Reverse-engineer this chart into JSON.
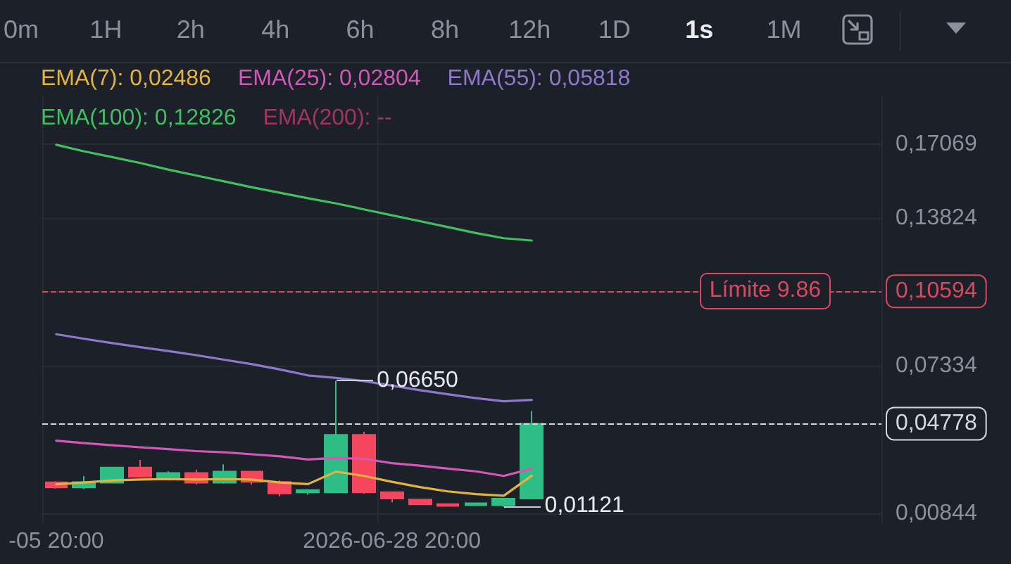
{
  "chart_data": {
    "type": "candlestick",
    "categories": [
      "-05 20:00",
      null,
      null,
      null,
      null,
      null,
      null,
      null,
      null,
      null,
      null,
      null,
      "2026-06-28 20:00",
      null,
      null,
      null,
      null,
      null,
      null,
      null,
      null,
      null,
      null,
      null,
      null,
      null,
      null,
      null,
      null,
      null
    ],
    "series": [
      {
        "ohlc": [
          [
            0.022,
            0.0225,
            0.0192,
            0.0197
          ],
          [
            0.0197,
            0.0247,
            0.019,
            0.0221
          ],
          [
            0.0218,
            0.0288,
            0.0215,
            0.0285
          ],
          [
            0.0285,
            0.0318,
            0.024,
            0.0244
          ],
          [
            0.0232,
            0.0268,
            0.0228,
            0.0261
          ],
          [
            0.0261,
            0.0276,
            0.021,
            0.0218
          ],
          [
            0.0218,
            0.0299,
            0.0214,
            0.0267
          ],
          [
            0.0267,
            0.027,
            0.0209,
            0.0222
          ],
          [
            0.0222,
            0.0228,
            0.0159,
            0.0171
          ],
          [
            0.0175,
            0.019,
            0.0165,
            0.0186
          ],
          [
            0.0175,
            0.0665,
            0.0172,
            0.0429
          ],
          [
            0.0429,
            0.0442,
            0.017,
            0.0175
          ],
          [
            0.0177,
            0.018,
            0.0132,
            0.0148
          ],
          [
            0.0144,
            0.0146,
            0.0121,
            0.0123
          ],
          [
            0.0124,
            0.0127,
            0.0114,
            0.0116
          ],
          [
            0.0119,
            0.013,
            0.0117,
            0.0128
          ],
          [
            0.0119,
            0.015,
            0.01121,
            0.0148
          ],
          [
            0.0148,
            0.0534,
            0.0146,
            0.04778
          ],
          null,
          null,
          null,
          null,
          null,
          null,
          null,
          null,
          null,
          null,
          null,
          null
        ],
        "colors": [
          "#f6465d",
          "#2ebd85",
          "#2ebd85",
          "#f6465d",
          "#2ebd85",
          "#f6465d",
          "#2ebd85",
          "#f6465d",
          "#f6465d",
          "#2ebd85",
          "#2ebd85",
          "#f6465d",
          "#f6465d",
          "#f6465d",
          "#f6465d",
          "#2ebd85",
          "#2ebd85",
          "#2ebd85",
          null,
          null,
          null,
          null,
          null,
          null,
          null,
          null,
          null,
          null,
          null,
          null
        ],
        "value_labels": [
          null,
          null,
          null,
          null,
          null,
          null,
          null,
          null,
          null,
          null,
          "0,06650",
          null,
          null,
          null,
          null,
          null,
          "0,01121",
          null,
          null,
          null,
          null,
          null,
          null,
          null,
          null,
          null,
          null,
          null,
          null,
          null
        ]
      },
      {
        "type": "line",
        "name": "EMA(7): 0,02486",
        "color": "#e3b341",
        "values": [
          0.0211,
          0.0219,
          0.0228,
          0.0232,
          0.0234,
          0.0232,
          0.0234,
          0.0232,
          0.0219,
          0.0212,
          0.0267,
          0.0248,
          0.0222,
          0.0199,
          0.018,
          0.0168,
          0.0161,
          0.0249,
          null,
          null,
          null,
          null,
          null,
          null,
          null,
          null,
          null,
          null,
          null,
          null
        ]
      },
      {
        "type": "line",
        "name": "EMA(25): 0,02804",
        "color": "#d357b6",
        "values": [
          0.0403,
          0.0392,
          0.0383,
          0.0374,
          0.0366,
          0.0357,
          0.0352,
          0.0343,
          0.0334,
          0.032,
          0.0327,
          0.0323,
          0.0304,
          0.0293,
          0.028,
          0.0268,
          0.0248,
          0.028,
          null,
          null,
          null,
          null,
          null,
          null,
          null,
          null,
          null,
          null,
          null,
          null
        ]
      },
      {
        "type": "line",
        "name": "EMA(55): 0,05818",
        "color": "#8d78cc",
        "values": [
          0.0871,
          0.0851,
          0.0832,
          0.0814,
          0.0797,
          0.0779,
          0.0759,
          0.0739,
          0.0716,
          0.069,
          0.0679,
          0.0665,
          0.0645,
          0.0625,
          0.0607,
          0.059,
          0.0576,
          0.0582,
          null,
          null,
          null,
          null,
          null,
          null,
          null,
          null,
          null,
          null,
          null,
          null
        ]
      },
      {
        "type": "line",
        "name": "EMA(100): 0,12826",
        "color": "#3fbf5f",
        "values": [
          0.1704,
          0.1675,
          0.165,
          0.1624,
          0.1595,
          0.1569,
          0.1543,
          0.1517,
          0.1493,
          0.1469,
          0.1446,
          0.142,
          0.1394,
          0.1368,
          0.1342,
          0.1316,
          0.1293,
          0.1283,
          null,
          null,
          null,
          null,
          null,
          null,
          null,
          null,
          null,
          null,
          null,
          null
        ]
      },
      {
        "type": "line",
        "name": "EMA(200): --",
        "color": "#a3355d",
        "values": [
          null,
          null,
          null,
          null,
          null,
          null,
          null,
          null,
          null,
          null,
          null,
          null,
          null,
          null,
          null,
          null,
          null,
          null,
          null,
          null,
          null,
          null,
          null,
          null,
          null,
          null,
          null,
          null,
          null,
          null
        ]
      }
    ],
    "ylim": [
      0.004,
      0.192
    ],
    "yticks": [
      {
        "value": 0.17069,
        "label": "0,17069"
      },
      {
        "value": 0.13824,
        "label": "0,13824"
      },
      {
        "value": 0.10594,
        "label": "0,10594"
      },
      {
        "value": 0.07334,
        "label": "0,07334"
      },
      {
        "value": 0.04778,
        "label": "0,04778"
      },
      {
        "value": 0.00844,
        "label": "0,00844"
      }
    ],
    "grid": true,
    "legend": "top left",
    "marker": "none",
    "ref_lines": [
      {
        "axis": "y",
        "value": 0.10594,
        "label": "Límite 9.86",
        "color": "#d9485f",
        "line_style": "dashed"
      },
      {
        "axis": "y",
        "value": 0.04778,
        "color": "#d5d8dd",
        "line_style": "dashed"
      }
    ],
    "annotations": [
      "0m",
      "1H",
      "2h",
      "4h",
      "6h",
      "8h",
      "12h",
      "1D",
      "1s",
      "1M"
    ]
  }
}
